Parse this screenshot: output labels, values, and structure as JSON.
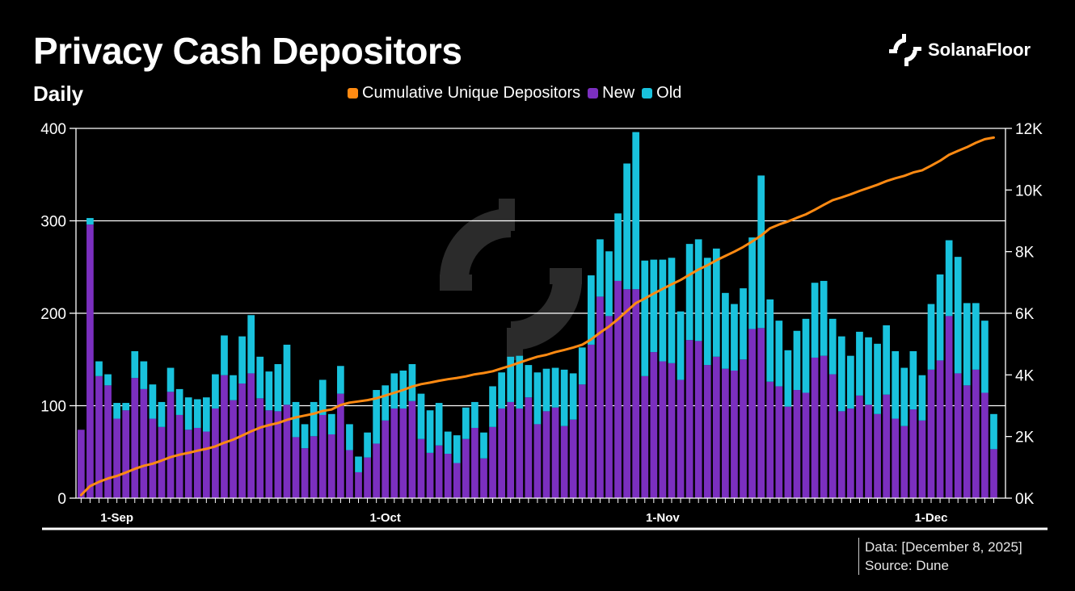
{
  "title": "Privacy Cash Depositors",
  "subtitle": "Daily",
  "brand": {
    "name": "SolanaFloor",
    "icon": "solanafloor-logo-icon"
  },
  "watermark": {
    "icon": "solanafloor-watermark-icon"
  },
  "footer": {
    "data_label": "Data: [December 8, 2025]",
    "source_label": "Source: Dune"
  },
  "colors": {
    "new": "#7b2fbf",
    "old": "#19c2dd",
    "cumulative": "#ff8a12",
    "grid": "#ffffff",
    "background": "#000000"
  },
  "legend": [
    {
      "label": "Cumulative Unique Depositors",
      "color": "#ff8a12"
    },
    {
      "label": "New",
      "color": "#7b2fbf"
    },
    {
      "label": "Old",
      "color": "#19c2dd"
    }
  ],
  "chart_data": {
    "type": "bar",
    "stacked": true,
    "title": "Privacy Cash Depositors",
    "subtitle": "Daily",
    "x_start_date": "2025-08-28",
    "x_end_date": "2025-12-08",
    "x_tick_labels": [
      {
        "label": "1-Sep",
        "day_index": 4
      },
      {
        "label": "1-Oct",
        "day_index": 34
      },
      {
        "label": "1-Nov",
        "day_index": 65
      },
      {
        "label": "1-Dec",
        "day_index": 95
      }
    ],
    "y_left": {
      "min": 0,
      "max": 400,
      "ticks": [
        0,
        100,
        200,
        300,
        400
      ],
      "tick_labels": [
        "0",
        "100",
        "200",
        "300",
        "400"
      ]
    },
    "y_right": {
      "min": 0,
      "max": 12000,
      "ticks": [
        0,
        2000,
        4000,
        6000,
        8000,
        10000,
        12000
      ],
      "tick_labels": [
        "0K",
        "2K",
        "4K",
        "6K",
        "8K",
        "10K",
        "12K"
      ]
    },
    "grid": true,
    "legend_position": "top-center",
    "series": [
      {
        "name": "New",
        "axis": "left",
        "values": [
          74,
          296,
          132,
          122,
          86,
          95,
          130,
          118,
          86,
          77,
          115,
          90,
          74,
          76,
          72,
          97,
          133,
          106,
          124,
          135,
          108,
          95,
          94,
          101,
          66,
          54,
          67,
          90,
          69,
          113,
          52,
          28,
          44,
          59,
          84,
          97,
          97,
          105,
          64,
          49,
          57,
          48,
          38,
          64,
          76,
          43,
          77,
          97,
          104,
          97,
          109,
          80,
          94,
          98,
          78,
          85,
          123,
          166,
          218,
          197,
          235,
          226,
          226,
          132,
          158,
          148,
          146,
          128,
          171,
          170,
          144,
          153,
          140,
          138,
          150,
          183,
          184,
          126,
          121,
          99,
          117,
          114,
          152,
          154,
          134,
          94,
          97,
          111,
          101,
          91,
          112,
          86,
          78,
          96,
          84,
          139,
          149,
          197,
          135,
          122,
          139,
          114,
          53
        ],
        "color": "#7b2fbf"
      },
      {
        "name": "Old",
        "axis": "left",
        "values": [
          0,
          7,
          16,
          12,
          17,
          8,
          29,
          30,
          37,
          27,
          26,
          28,
          35,
          31,
          37,
          37,
          43,
          27,
          51,
          63,
          45,
          42,
          51,
          65,
          38,
          26,
          37,
          38,
          22,
          30,
          28,
          17,
          27,
          58,
          38,
          38,
          41,
          40,
          49,
          46,
          46,
          24,
          30,
          34,
          28,
          28,
          44,
          39,
          49,
          57,
          35,
          56,
          46,
          43,
          61,
          50,
          40,
          75,
          62,
          70,
          73,
          136,
          170,
          125,
          100,
          110,
          114,
          74,
          104,
          110,
          116,
          117,
          82,
          72,
          77,
          99,
          165,
          89,
          71,
          61,
          64,
          80,
          81,
          81,
          60,
          81,
          57,
          69,
          73,
          76,
          75,
          73,
          63,
          63,
          49,
          71,
          93,
          82,
          126,
          89,
          72,
          78,
          38
        ],
        "color": "#19c2dd"
      },
      {
        "name": "Cumulative Unique Depositors",
        "axis": "right",
        "type": "line",
        "values": [
          100,
          390,
          530,
          640,
          720,
          830,
          950,
          1050,
          1120,
          1220,
          1330,
          1410,
          1470,
          1540,
          1600,
          1680,
          1800,
          1900,
          2030,
          2170,
          2290,
          2370,
          2440,
          2540,
          2620,
          2680,
          2740,
          2830,
          2880,
          3020,
          3100,
          3140,
          3180,
          3240,
          3330,
          3420,
          3510,
          3620,
          3700,
          3750,
          3810,
          3860,
          3900,
          3950,
          4020,
          4060,
          4120,
          4210,
          4300,
          4400,
          4500,
          4590,
          4650,
          4740,
          4810,
          4890,
          4980,
          5150,
          5370,
          5570,
          5810,
          6070,
          6330,
          6480,
          6640,
          6790,
          6940,
          7080,
          7250,
          7420,
          7560,
          7720,
          7860,
          8000,
          8150,
          8330,
          8520,
          8760,
          8880,
          8980,
          9100,
          9210,
          9360,
          9520,
          9670,
          9760,
          9860,
          9970,
          10070,
          10170,
          10290,
          10380,
          10460,
          10570,
          10640,
          10790,
          10950,
          11140,
          11270,
          11390,
          11530,
          11650,
          11700
        ],
        "color": "#ff8a12"
      }
    ]
  }
}
